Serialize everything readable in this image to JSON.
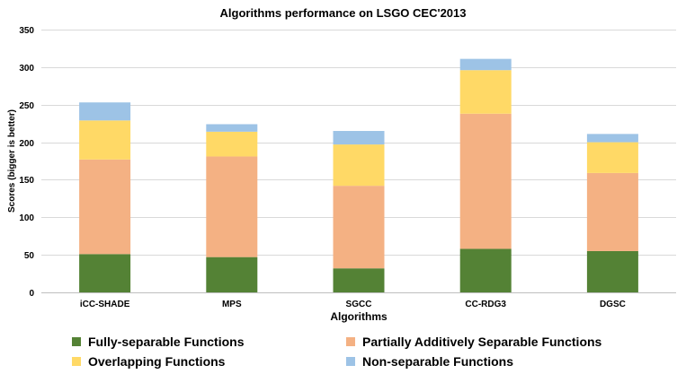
{
  "chart_data": {
    "type": "bar",
    "stacked": true,
    "title": "Algorithms  performance on LSGO CEC'2013",
    "xlabel": "Algorithms",
    "ylabel": "Scores (bigger is better)",
    "ylim": [
      0,
      350
    ],
    "yticks": [
      0,
      50,
      100,
      150,
      200,
      250,
      300,
      350
    ],
    "grid": true,
    "legend_position": "bottom",
    "categories": [
      "iCC-SHADE",
      "MPS",
      "SGCC",
      "CC-RDG3",
      "DGSC"
    ],
    "series": [
      {
        "name": "Fully-separable Functions",
        "color": "#548235",
        "values": [
          51,
          47,
          32,
          58,
          55
        ]
      },
      {
        "name": "Partially Additively Separable Functions",
        "color": "#f4b183",
        "values": [
          126,
          134,
          110,
          180,
          104
        ]
      },
      {
        "name": "Overlapping Functions",
        "color": "#ffd966",
        "values": [
          52,
          33,
          55,
          58,
          41
        ]
      },
      {
        "name": "Non-separable Functions",
        "color": "#9dc3e6",
        "values": [
          24,
          10,
          18,
          15,
          11
        ]
      }
    ]
  }
}
